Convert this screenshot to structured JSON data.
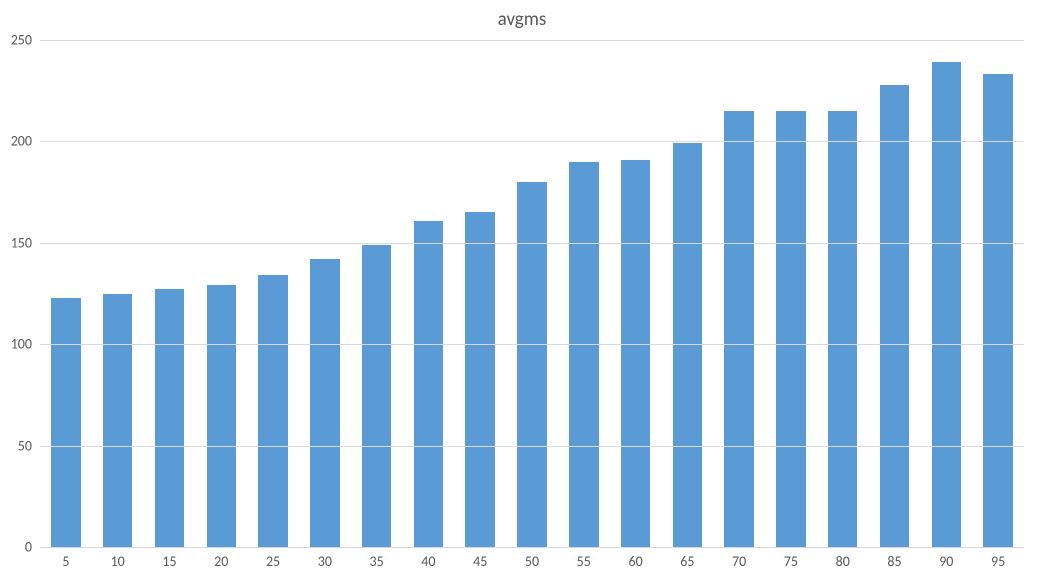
{
  "chart": {
    "type": "bar",
    "title": "avgms",
    "title_fontsize": 19,
    "title_color": "#595959",
    "background_color": "#ffffff",
    "grid_color": "#d9d9d9",
    "axis_label_color": "#595959",
    "axis_label_fontsize": 14,
    "bar_color": "#5b9bd5",
    "bar_width_ratio": 0.57,
    "ylim": [
      0,
      250
    ],
    "ytick_step": 50,
    "yticks": [
      0,
      50,
      100,
      150,
      200,
      250
    ],
    "categories": [
      "5",
      "10",
      "15",
      "20",
      "25",
      "30",
      "35",
      "40",
      "45",
      "50",
      "55",
      "60",
      "65",
      "70",
      "75",
      "80",
      "85",
      "90",
      "95"
    ],
    "values": [
      123,
      125,
      127,
      129,
      134,
      142,
      149,
      161,
      165,
      180,
      190,
      191,
      199,
      215,
      215,
      215,
      228,
      239,
      233
    ]
  }
}
